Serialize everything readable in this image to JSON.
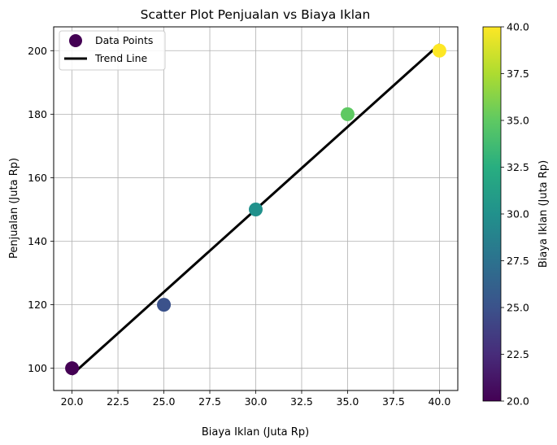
{
  "chart_data": {
    "type": "scatter",
    "title": "Scatter Plot Penjualan vs Biaya Iklan",
    "xlabel": "Biaya Iklan (Juta Rp)",
    "ylabel": "Penjualan (Juta Rp)",
    "xlim": [
      19.0,
      41.0
    ],
    "ylim": [
      93.0,
      207.5
    ],
    "xticks": [
      "20.0",
      "22.5",
      "25.0",
      "27.5",
      "30.0",
      "32.5",
      "35.0",
      "37.5",
      "40.0"
    ],
    "yticks": [
      "100",
      "120",
      "140",
      "160",
      "180",
      "200"
    ],
    "grid": true,
    "legend_position": "top-left",
    "series": [
      {
        "name": "Data Points",
        "x": [
          20,
          25,
          30,
          35,
          40
        ],
        "y": [
          100,
          120,
          150,
          180,
          200
        ],
        "colors": [
          "#440154",
          "#3b528b",
          "#21918c",
          "#5ec962",
          "#fde725"
        ]
      },
      {
        "name": "Trend Line",
        "type": "line",
        "x": [
          20,
          40
        ],
        "y": [
          98,
          202
        ],
        "color": "#000000"
      }
    ],
    "colorbar": {
      "label": "Biaya Iklan (Juta Rp)",
      "range": [
        20.0,
        40.0
      ],
      "ticks": [
        "20.0",
        "22.5",
        "25.0",
        "27.5",
        "30.0",
        "32.5",
        "35.0",
        "37.5",
        "40.0"
      ],
      "colormap": "viridis"
    }
  }
}
